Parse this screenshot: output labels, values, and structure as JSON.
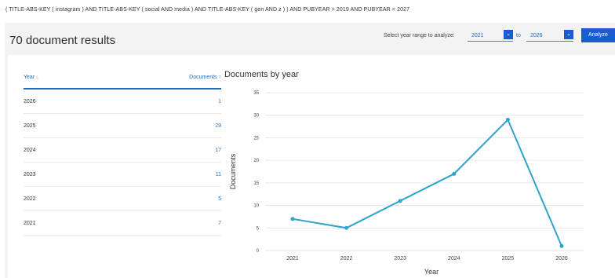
{
  "query": "( TITLE-ABS-KEY ( instagram ) AND TITLE-ABS-KEY ( social AND media ) AND TITLE-ABS-KEY ( gen AND z ) ) AND PUBYEAR > 2019 AND PUBYEAR < 2027",
  "header": {
    "results_title": "70 document results",
    "year_range_label": "Select year range to analyze:",
    "from_value": "2021",
    "to_label": "to",
    "to_value": "2026",
    "analyze_label": "Analyze"
  },
  "table": {
    "year_header": "Year",
    "docs_header": "Documents",
    "rows": [
      {
        "year": "2026",
        "count": "1"
      },
      {
        "year": "2025",
        "count": "29"
      },
      {
        "year": "2024",
        "count": "17"
      },
      {
        "year": "2023",
        "count": "11"
      },
      {
        "year": "2022",
        "count": "5"
      },
      {
        "year": "2021",
        "count": "7"
      }
    ]
  },
  "colors": {
    "accent": "#1a5ccf",
    "line": "#2ea4c9"
  },
  "chart_data": {
    "type": "line",
    "title": "Documents by year",
    "xlabel": "Year",
    "ylabel": "Documents",
    "x": [
      "2021",
      "2022",
      "2023",
      "2024",
      "2025",
      "2026"
    ],
    "series": [
      {
        "values": [
          7,
          5,
          11,
          17,
          29,
          1
        ]
      }
    ],
    "ylim": [
      0,
      35
    ],
    "yticks": [
      0,
      5,
      10,
      15,
      20,
      25,
      30,
      35
    ],
    "grid": true
  }
}
